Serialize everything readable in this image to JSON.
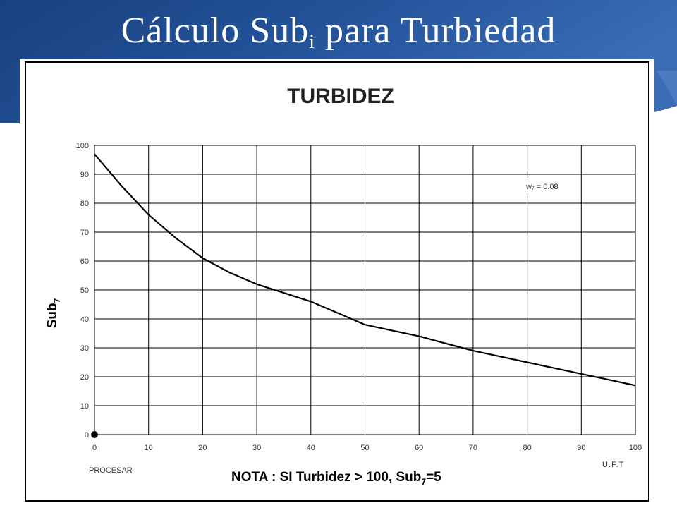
{
  "slide": {
    "title_main": "Cálculo Sub",
    "title_sub": "i",
    "title_tail": " para Turbiedad"
  },
  "colors": {
    "slide_bg": "#1f4a8c",
    "slide_bg_light": "#3a6db5",
    "chart_border": "#000000",
    "grid": "#000000",
    "line": "#000000"
  },
  "chart_data": {
    "type": "line",
    "title": "TURBIDEZ",
    "ylabel_main": "Sub",
    "ylabel_sub": "7",
    "xlabel": "U.F.T",
    "x_ticks": [
      0,
      10,
      20,
      30,
      40,
      50,
      60,
      70,
      80,
      90,
      100
    ],
    "y_ticks": [
      0,
      10,
      20,
      30,
      40,
      50,
      60,
      70,
      80,
      90,
      100
    ],
    "xlim": [
      0,
      100
    ],
    "ylim": [
      0,
      100
    ],
    "grid": true,
    "series": [
      {
        "x": [
          0,
          5,
          10,
          15,
          20,
          25,
          30,
          35,
          40,
          45,
          50,
          55,
          60,
          65,
          70,
          75,
          80,
          85,
          90,
          95,
          100
        ],
        "y": [
          97,
          86,
          76,
          68,
          61,
          56,
          52,
          49,
          46,
          42,
          38,
          36,
          34,
          31.5,
          29,
          27,
          25,
          23,
          21,
          19,
          17
        ]
      }
    ],
    "marker_point": {
      "x": 0,
      "y": 0
    },
    "annotation_weight": "w₇ = 0.08",
    "annotation_process": "PROCESAR",
    "note_main": "NOTA : SI Turbidez > 100, Sub",
    "note_sub": "7",
    "note_tail": "=5"
  }
}
